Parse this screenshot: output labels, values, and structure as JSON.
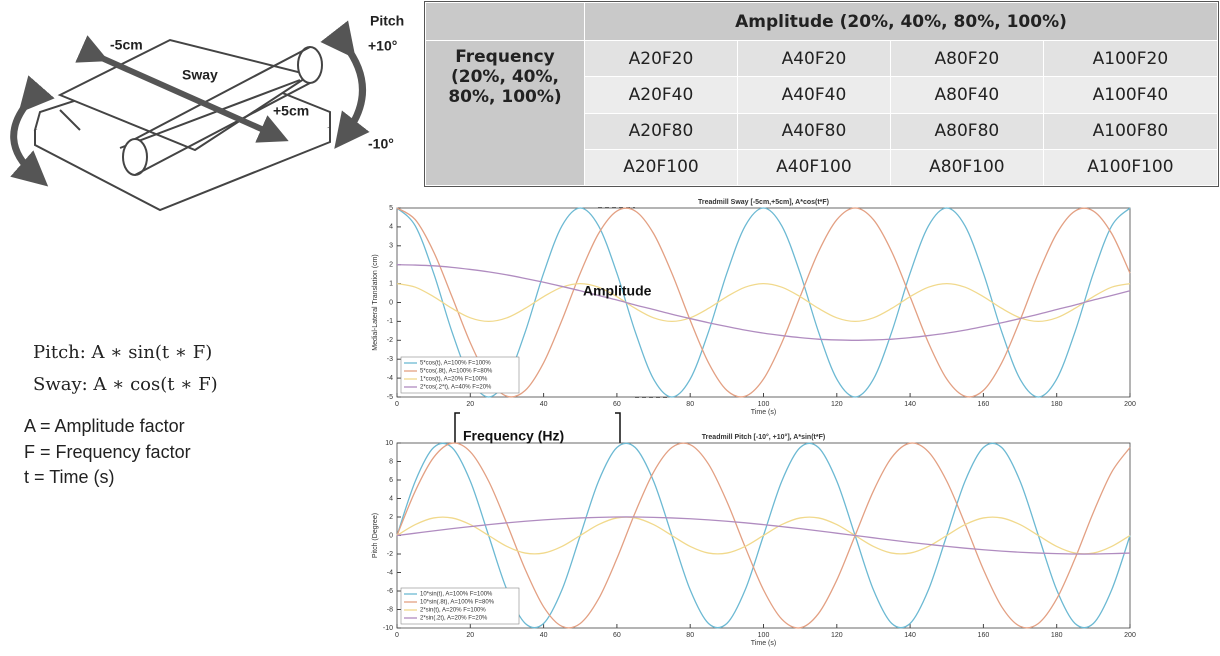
{
  "diagram": {
    "labels": [
      "-5cm",
      "Sway",
      "+5cm"
    ],
    "pitch_label": "Pitch",
    "pitch_max": "+10°",
    "pitch_min": "-10°"
  },
  "formulas": [
    "Pitch: A ∗ sin(t ∗ F)",
    "Sway: A ∗ cos(t ∗ F)",
    "A = Amplitude factor",
    "F = Frequency factor",
    "t = Time (s)"
  ],
  "table": {
    "header": "Amplitude (20%, 40%, 80%, 100%)",
    "row_header": "Frequency (20%, 40%, 80%, 100%)",
    "rows": [
      [
        "A20F20",
        "A40F20",
        "A80F20",
        "A100F20"
      ],
      [
        "A20F40",
        "A40F40",
        "A80F40",
        "A100F40"
      ],
      [
        "A20F80",
        "A40F80",
        "A80F80",
        "A100F80"
      ],
      [
        "A20F100",
        "A40F100",
        "A80F100",
        "A100F100"
      ]
    ]
  },
  "chart_data": [
    {
      "type": "line",
      "title": "Treadmill Sway [-5cm,+5cm], A*cos(t*F)",
      "xlabel": "Time (s)",
      "ylabel": "Medial-Lateral Translation (cm)",
      "annotation": "Amplitude",
      "xlim": [
        0,
        200
      ],
      "xticks": [
        0,
        20,
        40,
        60,
        80,
        100,
        120,
        140,
        160,
        180,
        200
      ],
      "ylim": [
        -5,
        5
      ],
      "yticks": [
        -5,
        -4,
        -3,
        -2,
        -1,
        0,
        1,
        2,
        3,
        4,
        5
      ],
      "legend": "lower left",
      "x": [
        0,
        5,
        10,
        15,
        20,
        25,
        30,
        35,
        40,
        45,
        50,
        55,
        60,
        65,
        70,
        75,
        80,
        85,
        90,
        95,
        100,
        105,
        110,
        115,
        120,
        125,
        130,
        135,
        140,
        145,
        150,
        155,
        160,
        165,
        170,
        175,
        180,
        185,
        190,
        195,
        200
      ],
      "series": [
        {
          "name": "5*cos(t), A=100% F=100%",
          "color": "#6cb9d3",
          "values": [
            5,
            4.05,
            1.55,
            -1.55,
            -4.05,
            -5,
            -4.05,
            -1.55,
            1.55,
            4.05,
            5,
            4.05,
            1.55,
            -1.55,
            -4.05,
            -5,
            -4.05,
            -1.55,
            1.55,
            4.05,
            5,
            4.05,
            1.55,
            -1.55,
            -4.05,
            -5,
            -4.05,
            -1.55,
            1.55,
            4.05,
            5,
            4.05,
            1.55,
            -1.55,
            -4.05,
            -5,
            -4.05,
            -1.55,
            1.55,
            4.05,
            5
          ]
        },
        {
          "name": "5*cos(.8t), A=100% F=80%",
          "color": "#e3a083",
          "values": [
            5,
            4.38,
            2.68,
            0.31,
            -2.13,
            -4.05,
            -4.96,
            -4.65,
            -3.19,
            -0.94,
            1.55,
            3.65,
            4.84,
            4.84,
            3.65,
            1.55,
            -0.94,
            -3.19,
            -4.65,
            -4.96,
            -4.05,
            -2.13,
            0.31,
            2.68,
            4.38,
            5,
            4.38,
            2.68,
            0.31,
            -2.13,
            -4.05,
            -4.96,
            -4.65,
            -3.19,
            -0.94,
            1.55,
            3.65,
            4.84,
            4.84,
            3.65,
            1.55
          ]
        },
        {
          "name": "1*cos(t), A=20% F=100%",
          "color": "#f1d98c",
          "values": [
            1,
            0.81,
            0.31,
            -0.31,
            -0.81,
            -1,
            -0.81,
            -0.31,
            0.31,
            0.81,
            1,
            0.81,
            0.31,
            -0.31,
            -0.81,
            -1,
            -0.81,
            -0.31,
            0.31,
            0.81,
            1,
            0.81,
            0.31,
            -0.31,
            -0.81,
            -1,
            -0.81,
            -0.31,
            0.31,
            0.81,
            1,
            0.81,
            0.31,
            -0.31,
            -0.81,
            -1,
            -0.81,
            -0.31,
            0.31,
            0.81,
            1
          ]
        },
        {
          "name": "2*cos(.2*t), A=40% F=20%",
          "color": "#b08cc0",
          "values": [
            2,
            1.98,
            1.94,
            1.86,
            1.75,
            1.62,
            1.46,
            1.27,
            1.07,
            0.85,
            0.62,
            0.37,
            0.13,
            -0.13,
            -0.37,
            -0.62,
            -0.85,
            -1.07,
            -1.27,
            -1.46,
            -1.62,
            -1.75,
            -1.86,
            -1.94,
            -1.98,
            -2,
            -1.98,
            -1.94,
            -1.86,
            -1.75,
            -1.62,
            -1.46,
            -1.27,
            -1.07,
            -0.85,
            -0.62,
            -0.37,
            -0.13,
            0.13,
            0.37,
            0.62
          ]
        }
      ]
    },
    {
      "type": "line",
      "title": "Treadmill Pitch [-10°, +10°], A*sin(t*F)",
      "xlabel": "Time (s)",
      "ylabel": "Pitch (Degree)",
      "annotation": "Frequency (Hz)",
      "xlim": [
        0,
        200
      ],
      "xticks": [
        0,
        20,
        40,
        60,
        80,
        100,
        120,
        140,
        160,
        180,
        200
      ],
      "ylim": [
        -10,
        10
      ],
      "yticks": [
        -10,
        -8,
        -6,
        -4,
        -2,
        0,
        2,
        4,
        6,
        8,
        10
      ],
      "legend": "lower left",
      "x": [
        0,
        5,
        10,
        15,
        20,
        25,
        30,
        35,
        40,
        45,
        50,
        55,
        60,
        65,
        70,
        75,
        80,
        85,
        90,
        95,
        100,
        105,
        110,
        115,
        120,
        125,
        130,
        135,
        140,
        145,
        150,
        155,
        160,
        165,
        170,
        175,
        180,
        185,
        190,
        195,
        200
      ],
      "series": [
        {
          "name": "10*sin(t), A=100% F=100%",
          "color": "#6cb9d3",
          "values": [
            0,
            5.88,
            9.51,
            9.51,
            5.88,
            0,
            -5.88,
            -9.51,
            -9.51,
            -5.88,
            0,
            5.88,
            9.51,
            9.51,
            5.88,
            0,
            -5.88,
            -9.51,
            -9.51,
            -5.88,
            0,
            5.88,
            9.51,
            9.51,
            5.88,
            0,
            -5.88,
            -9.51,
            -9.51,
            -5.88,
            0,
            5.88,
            9.51,
            9.51,
            5.88,
            0,
            -5.88,
            -9.51,
            -9.51,
            -5.88,
            0
          ]
        },
        {
          "name": "10*sin(.8t), A=100% F=80%",
          "color": "#e3a083",
          "values": [
            0,
            4.82,
            8.44,
            9.98,
            9.05,
            5.88,
            1.25,
            -3.68,
            -7.71,
            -9.82,
            -9.51,
            -6.85,
            -2.49,
            2.49,
            6.85,
            9.51,
            9.82,
            7.71,
            3.68,
            -1.25,
            -5.88,
            -9.05,
            -9.98,
            -8.44,
            -4.82,
            0,
            4.82,
            8.44,
            9.98,
            9.05,
            5.88,
            1.25,
            -3.68,
            -7.71,
            -9.82,
            -9.51,
            -6.85,
            -2.49,
            2.49,
            6.85,
            9.51
          ]
        },
        {
          "name": "2*sin(t), A=20% F=100%",
          "color": "#f1d98c",
          "values": [
            0,
            1.18,
            1.9,
            1.9,
            1.18,
            0,
            -1.18,
            -1.9,
            -1.9,
            -1.18,
            0,
            1.18,
            1.9,
            1.9,
            1.18,
            0,
            -1.18,
            -1.9,
            -1.9,
            -1.18,
            0,
            1.18,
            1.9,
            1.9,
            1.18,
            0,
            -1.18,
            -1.9,
            -1.9,
            -1.18,
            0,
            1.18,
            1.9,
            1.9,
            1.18,
            0,
            -1.18,
            -1.9,
            -1.9,
            -1.18,
            0
          ]
        },
        {
          "name": "2*sin(.2t), A=20% F=20%",
          "color": "#b08cc0",
          "values": [
            0,
            0.25,
            0.5,
            0.74,
            0.96,
            1.18,
            1.37,
            1.54,
            1.69,
            1.81,
            1.9,
            1.96,
            2,
            2,
            1.96,
            1.9,
            1.81,
            1.69,
            1.54,
            1.37,
            1.18,
            0.96,
            0.74,
            0.5,
            0.25,
            0,
            -0.25,
            -0.5,
            -0.74,
            -0.96,
            -1.18,
            -1.37,
            -1.54,
            -1.69,
            -1.81,
            -1.9,
            -1.96,
            -2,
            -2,
            -1.96,
            -1.9
          ]
        }
      ]
    }
  ]
}
